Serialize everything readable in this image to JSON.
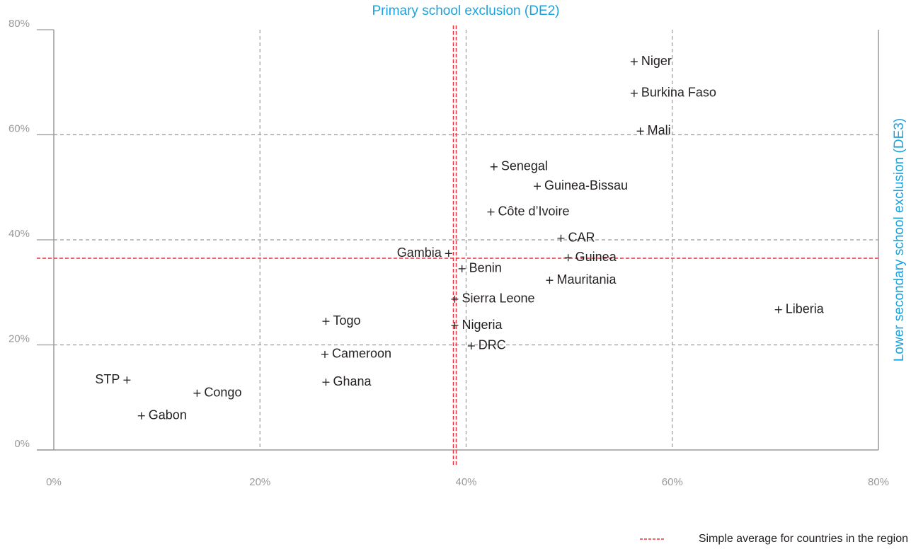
{
  "chart_data": {
    "type": "scatter",
    "title": "Primary school exclusion (DE2)",
    "y_label": "Lower secondary school exclusion (DE3)",
    "labels": [
      "Niger",
      "Burkina Faso",
      "Mali",
      "Senegal",
      "Guinea-Bissau",
      "Côte d’Ivoire",
      "CAR",
      "Gambia",
      "Guinea",
      "Benin",
      "Mauritania",
      "Sierra Leone",
      "Liberia",
      "Togo",
      "Nigeria",
      "DRC",
      "Cameroon",
      "Ghana",
      "STP",
      "Congo",
      "Gabon"
    ],
    "x": [
      56.3,
      56.3,
      56.9,
      42.7,
      46.9,
      42.4,
      49.2,
      38.3,
      49.9,
      39.6,
      48.1,
      38.9,
      70.3,
      26.4,
      38.9,
      40.5,
      26.3,
      26.4,
      7.1,
      13.9,
      8.5
    ],
    "values": [
      73.9,
      67.9,
      60.7,
      53.9,
      50.2,
      45.3,
      40.3,
      37.4,
      36.6,
      34.5,
      32.3,
      28.7,
      26.7,
      24.5,
      23.7,
      19.8,
      18.2,
      12.9,
      13.3,
      10.8,
      6.5
    ],
    "color": "#231f20",
    "reference_lines": {
      "label": "Simple average for countries in the region",
      "x": 38.9,
      "y": 36.5,
      "color": "#e8343f"
    },
    "xlim": [
      0,
      80
    ],
    "ylim": [
      0,
      80
    ],
    "xticks": [
      {
        "value": 0,
        "label": "0%"
      },
      {
        "value": 20,
        "label": "20%"
      },
      {
        "value": 40,
        "label": "40%"
      },
      {
        "value": 60,
        "label": "60%"
      },
      {
        "value": 80,
        "label": "80%"
      }
    ],
    "yticks": [
      {
        "value": 0,
        "label": "0%"
      },
      {
        "value": 20,
        "label": "20%"
      },
      {
        "value": 40,
        "label": "40%"
      },
      {
        "value": 60,
        "label": "60%"
      },
      {
        "value": 80,
        "label": "80%"
      }
    ],
    "grid": true
  }
}
